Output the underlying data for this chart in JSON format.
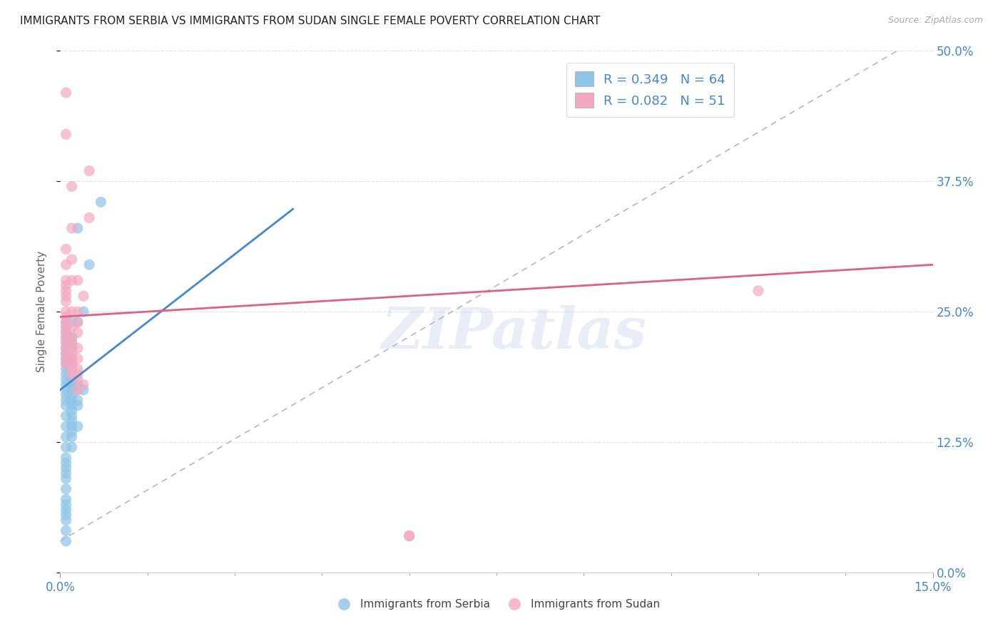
{
  "title": "IMMIGRANTS FROM SERBIA VS IMMIGRANTS FROM SUDAN SINGLE FEMALE POVERTY CORRELATION CHART",
  "source": "Source: ZipAtlas.com",
  "xlim": [
    0.0,
    0.15
  ],
  "ylim": [
    0.0,
    0.5
  ],
  "ylabel": "Single Female Poverty",
  "watermark": "ZIPatlas",
  "legend_r_serbia": "R = 0.349",
  "legend_n_serbia": "N = 64",
  "legend_r_sudan": "R = 0.082",
  "legend_n_sudan": "N = 51",
  "serbia_color": "#8ec4e8",
  "sudan_color": "#f4a8c0",
  "serbia_line_color": "#4488cc",
  "sudan_line_color": "#e06080",
  "diagonal_color": "#b0b8c8",
  "serbia_scatter": [
    [
      0.001,
      0.03
    ],
    [
      0.001,
      0.04
    ],
    [
      0.001,
      0.05
    ],
    [
      0.001,
      0.055
    ],
    [
      0.001,
      0.06
    ],
    [
      0.001,
      0.065
    ],
    [
      0.001,
      0.07
    ],
    [
      0.001,
      0.08
    ],
    [
      0.001,
      0.09
    ],
    [
      0.001,
      0.095
    ],
    [
      0.001,
      0.1
    ],
    [
      0.001,
      0.105
    ],
    [
      0.001,
      0.11
    ],
    [
      0.001,
      0.12
    ],
    [
      0.001,
      0.13
    ],
    [
      0.001,
      0.14
    ],
    [
      0.001,
      0.15
    ],
    [
      0.001,
      0.16
    ],
    [
      0.001,
      0.165
    ],
    [
      0.001,
      0.17
    ],
    [
      0.001,
      0.175
    ],
    [
      0.001,
      0.18
    ],
    [
      0.001,
      0.185
    ],
    [
      0.001,
      0.19
    ],
    [
      0.001,
      0.195
    ],
    [
      0.001,
      0.2
    ],
    [
      0.001,
      0.205
    ],
    [
      0.001,
      0.21
    ],
    [
      0.001,
      0.215
    ],
    [
      0.001,
      0.22
    ],
    [
      0.001,
      0.225
    ],
    [
      0.001,
      0.23
    ],
    [
      0.001,
      0.235
    ],
    [
      0.001,
      0.24
    ],
    [
      0.002,
      0.12
    ],
    [
      0.002,
      0.13
    ],
    [
      0.002,
      0.135
    ],
    [
      0.002,
      0.14
    ],
    [
      0.002,
      0.145
    ],
    [
      0.002,
      0.15
    ],
    [
      0.002,
      0.155
    ],
    [
      0.002,
      0.16
    ],
    [
      0.002,
      0.165
    ],
    [
      0.002,
      0.17
    ],
    [
      0.002,
      0.175
    ],
    [
      0.002,
      0.18
    ],
    [
      0.002,
      0.185
    ],
    [
      0.002,
      0.2
    ],
    [
      0.002,
      0.205
    ],
    [
      0.002,
      0.215
    ],
    [
      0.002,
      0.22
    ],
    [
      0.002,
      0.225
    ],
    [
      0.002,
      0.24
    ],
    [
      0.003,
      0.14
    ],
    [
      0.003,
      0.16
    ],
    [
      0.003,
      0.165
    ],
    [
      0.003,
      0.175
    ],
    [
      0.003,
      0.18
    ],
    [
      0.003,
      0.24
    ],
    [
      0.003,
      0.33
    ],
    [
      0.004,
      0.175
    ],
    [
      0.004,
      0.25
    ],
    [
      0.005,
      0.295
    ],
    [
      0.007,
      0.355
    ]
  ],
  "sudan_scatter": [
    [
      0.001,
      0.2
    ],
    [
      0.001,
      0.205
    ],
    [
      0.001,
      0.21
    ],
    [
      0.001,
      0.215
    ],
    [
      0.001,
      0.22
    ],
    [
      0.001,
      0.225
    ],
    [
      0.001,
      0.23
    ],
    [
      0.001,
      0.235
    ],
    [
      0.001,
      0.24
    ],
    [
      0.001,
      0.245
    ],
    [
      0.001,
      0.25
    ],
    [
      0.001,
      0.26
    ],
    [
      0.001,
      0.265
    ],
    [
      0.001,
      0.27
    ],
    [
      0.001,
      0.275
    ],
    [
      0.001,
      0.28
    ],
    [
      0.001,
      0.295
    ],
    [
      0.001,
      0.31
    ],
    [
      0.001,
      0.42
    ],
    [
      0.001,
      0.46
    ],
    [
      0.002,
      0.19
    ],
    [
      0.002,
      0.195
    ],
    [
      0.002,
      0.2
    ],
    [
      0.002,
      0.205
    ],
    [
      0.002,
      0.21
    ],
    [
      0.002,
      0.215
    ],
    [
      0.002,
      0.22
    ],
    [
      0.002,
      0.225
    ],
    [
      0.002,
      0.235
    ],
    [
      0.002,
      0.25
    ],
    [
      0.002,
      0.28
    ],
    [
      0.002,
      0.3
    ],
    [
      0.002,
      0.33
    ],
    [
      0.002,
      0.37
    ],
    [
      0.003,
      0.175
    ],
    [
      0.003,
      0.185
    ],
    [
      0.003,
      0.19
    ],
    [
      0.003,
      0.195
    ],
    [
      0.003,
      0.205
    ],
    [
      0.003,
      0.215
    ],
    [
      0.003,
      0.23
    ],
    [
      0.003,
      0.24
    ],
    [
      0.003,
      0.25
    ],
    [
      0.003,
      0.28
    ],
    [
      0.004,
      0.18
    ],
    [
      0.004,
      0.265
    ],
    [
      0.005,
      0.34
    ],
    [
      0.005,
      0.385
    ],
    [
      0.06,
      0.035
    ],
    [
      0.06,
      0.035
    ],
    [
      0.12,
      0.27
    ]
  ],
  "background_color": "#ffffff",
  "grid_color": "#e0e0e8",
  "title_color": "#333333",
  "axis_label_color": "#666666",
  "tick_color": "#4488cc"
}
